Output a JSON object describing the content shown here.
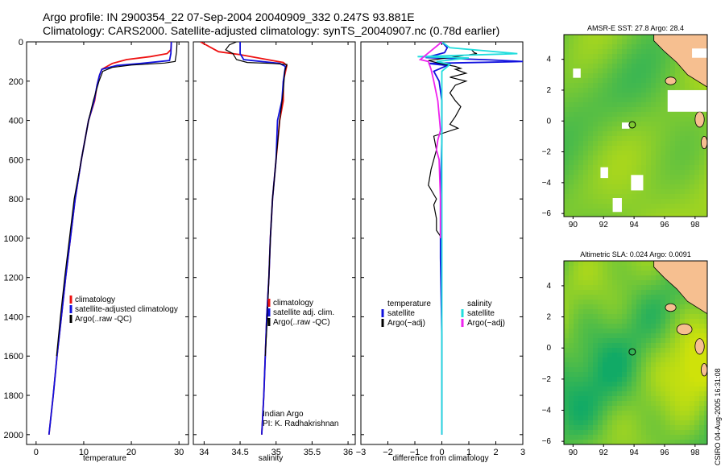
{
  "header": {
    "line1": "Argo profile: IN 2900354_22 07-Sep-2004 20040909_332 0.247S 93.881E",
    "line2": "Climatology: CARS2000. Satellite-adjusted climatology: synTS_20040907.nc (0.78d earlier)"
  },
  "credits": {
    "line1": "Indian Argo",
    "line2": "PI: K. Radhakrishnan",
    "stamp": "CSIRO 04-Aug-2005 16:31:08"
  },
  "colors": {
    "climatology": "#ee1111",
    "satellite": "#1111dd",
    "argo": "#000000",
    "salinity": "#ee22ee",
    "salinity_satellite": "#22dddd",
    "land": "#f6bf90",
    "ocean_high": "#cfe20a",
    "ocean_low": "#11aa66"
  },
  "chart_data": [
    {
      "type": "line",
      "title": "",
      "xlabel": "temperature",
      "ylabel": "",
      "xlim": [
        -2,
        32
      ],
      "ylim": [
        2050,
        0
      ],
      "xticks": [
        "0",
        "10",
        "20",
        "30"
      ],
      "yticks": [
        "0",
        "200",
        "400",
        "600",
        "800",
        "1000",
        "1200",
        "1400",
        "1600",
        "1800",
        "2000"
      ],
      "legend": [
        "climatology",
        "satellite-adjusted climatology",
        "Argo(..raw -QC)"
      ],
      "series": [
        {
          "name": "climatology",
          "color": "red",
          "points": [
            [
              28.4,
              0
            ],
            [
              28.3,
              40
            ],
            [
              27.5,
              60
            ],
            [
              24,
              75
            ],
            [
              19,
              90
            ],
            [
              16,
              110
            ],
            [
              13.8,
              140
            ],
            [
              13.3,
              170
            ],
            [
              12.8,
              220
            ],
            [
              12.3,
              300
            ],
            [
              11,
              400
            ],
            [
              9.5,
              600
            ],
            [
              8.2,
              800
            ],
            [
              7.2,
              1000
            ],
            [
              6.2,
              1200
            ],
            [
              5.3,
              1400
            ],
            [
              4.4,
              1600
            ],
            [
              3.6,
              1800
            ],
            [
              2.7,
              2000
            ]
          ]
        },
        {
          "name": "satellite-adjusted climatology",
          "color": "blue",
          "points": [
            [
              28.4,
              0
            ],
            [
              28.3,
              60
            ],
            [
              28,
              95
            ],
            [
              22,
              110
            ],
            [
              17,
              120
            ],
            [
              13.8,
              140
            ],
            [
              13.3,
              170
            ],
            [
              12.8,
              220
            ],
            [
              12.2,
              300
            ],
            [
              11,
              400
            ],
            [
              9.5,
              600
            ],
            [
              8.2,
              800
            ],
            [
              7.2,
              1000
            ],
            [
              6.2,
              1200
            ],
            [
              5.3,
              1400
            ],
            [
              4.4,
              1600
            ],
            [
              3.6,
              1800
            ],
            [
              2.7,
              2000
            ]
          ]
        },
        {
          "name": "Argo(..raw -QC)",
          "color": "black",
          "points": [
            [
              29.6,
              0
            ],
            [
              29.5,
              50
            ],
            [
              29.2,
              100
            ],
            [
              27,
              108
            ],
            [
              20,
              118
            ],
            [
              16,
              130
            ],
            [
              14,
              150
            ],
            [
              13.2,
              200
            ],
            [
              12,
              300
            ],
            [
              11,
              400
            ],
            [
              9.5,
              600
            ],
            [
              8,
              800
            ],
            [
              7,
              1000
            ],
            [
              6,
              1200
            ],
            [
              5.1,
              1400
            ],
            [
              4.3,
              1600
            ]
          ]
        }
      ]
    },
    {
      "type": "line",
      "title": "",
      "xlabel": "salinity",
      "ylabel": "",
      "xlim": [
        33.85,
        36.1
      ],
      "ylim": [
        2050,
        0
      ],
      "xticks": [
        "34",
        "34.5",
        "35",
        "35.5",
        "36"
      ],
      "legend": [
        "climatology",
        "satellite adj. clim.",
        "Argo(..raw -QC)"
      ],
      "series": [
        {
          "name": "climatology",
          "color": "red",
          "points": [
            [
              33.95,
              0
            ],
            [
              34.1,
              30
            ],
            [
              34.2,
              50
            ],
            [
              34.5,
              65
            ],
            [
              34.8,
              85
            ],
            [
              35.1,
              105
            ],
            [
              35.15,
              120
            ],
            [
              35.1,
              200
            ],
            [
              35.1,
              300
            ],
            [
              35.05,
              400
            ],
            [
              35,
              600
            ],
            [
              34.95,
              800
            ],
            [
              34.92,
              1000
            ],
            [
              34.9,
              1200
            ],
            [
              34.87,
              1400
            ],
            [
              34.85,
              1600
            ],
            [
              34.83,
              1800
            ],
            [
              34.8,
              2000
            ]
          ]
        },
        {
          "name": "satellite adj. clim.",
          "color": "blue",
          "points": [
            [
              34.5,
              0
            ],
            [
              34.5,
              60
            ],
            [
              34.55,
              90
            ],
            [
              35.05,
              110
            ],
            [
              35.13,
              125
            ],
            [
              35.1,
              200
            ],
            [
              35.08,
              300
            ],
            [
              35.02,
              400
            ],
            [
              35,
              600
            ],
            [
              34.95,
              800
            ],
            [
              34.92,
              1000
            ],
            [
              34.9,
              1200
            ],
            [
              34.87,
              1400
            ],
            [
              34.85,
              1600
            ],
            [
              34.83,
              1800
            ],
            [
              34.8,
              2000
            ]
          ]
        },
        {
          "name": "Argo(..raw -QC)",
          "color": "black",
          "points": [
            [
              34.45,
              0
            ],
            [
              34.35,
              15
            ],
            [
              34.3,
              40
            ],
            [
              34.4,
              60
            ],
            [
              34.45,
              90
            ],
            [
              34.6,
              105
            ],
            [
              34.95,
              110
            ],
            [
              35.15,
              115
            ],
            [
              35.12,
              150
            ],
            [
              35.1,
              250
            ],
            [
              35.05,
              400
            ],
            [
              35,
              600
            ],
            [
              34.95,
              800
            ],
            [
              34.92,
              1000
            ],
            [
              34.9,
              1200
            ],
            [
              34.88,
              1400
            ],
            [
              34.85,
              1600
            ]
          ]
        }
      ]
    },
    {
      "type": "line",
      "title": "",
      "xlabel": "difference from climatology",
      "ylabel": "",
      "xlim": [
        -3,
        3
      ],
      "ylim": [
        2050,
        0
      ],
      "xticks": [
        "−3",
        "−2",
        "−1",
        "0",
        "1",
        "2",
        "3"
      ],
      "legend_temperature": [
        "temperature",
        "satellite",
        "Argo(−adj)"
      ],
      "legend_salinity": [
        "salinity",
        "satellite",
        "Argo(−adj)"
      ],
      "series": [
        {
          "name": "temperature satellite",
          "color": "blue",
          "points": [
            [
              0,
              0
            ],
            [
              0.2,
              30
            ],
            [
              0.1,
              55
            ],
            [
              -0.6,
              80
            ],
            [
              1.8,
              92
            ],
            [
              3,
              100
            ],
            [
              -0.5,
              110
            ],
            [
              0.2,
              120
            ],
            [
              -0.3,
              150
            ],
            [
              -0.1,
              200
            ],
            [
              0,
              300
            ],
            [
              0,
              500
            ],
            [
              -0.05,
              800
            ],
            [
              -0.05,
              1100
            ],
            [
              0,
              1500
            ],
            [
              0,
              2000
            ]
          ]
        },
        {
          "name": "temperature Argo(−adj)",
          "color": "black",
          "points": [
            [
              1.1,
              40
            ],
            [
              1.2,
              55
            ],
            [
              1.3,
              60
            ],
            [
              -0.5,
              95
            ],
            [
              0,
              112
            ],
            [
              0.5,
              125
            ],
            [
              0.7,
              135
            ],
            [
              0.5,
              140
            ],
            [
              0.9,
              160
            ],
            [
              0.3,
              180
            ],
            [
              0.9,
              200
            ],
            [
              0.5,
              220
            ],
            [
              0.3,
              260
            ],
            [
              0.5,
              300
            ],
            [
              0.7,
              330
            ],
            [
              0.5,
              380
            ],
            [
              0.3,
              420
            ],
            [
              0.6,
              440
            ],
            [
              -0.3,
              480
            ],
            [
              -0.2,
              550
            ],
            [
              -0.4,
              650
            ],
            [
              -0.5,
              730
            ],
            [
              -0.2,
              800
            ],
            [
              -0.3,
              830
            ],
            [
              -0.2,
              900
            ],
            [
              -0.2,
              960
            ],
            [
              0,
              1000
            ]
          ]
        },
        {
          "name": "salinity satellite",
          "color": "cyan",
          "points": [
            [
              0,
              0
            ],
            [
              0.3,
              30
            ],
            [
              2.8,
              60
            ],
            [
              -0.9,
              75
            ],
            [
              1,
              82
            ],
            [
              -0.2,
              100
            ],
            [
              0.3,
              115
            ],
            [
              0,
              150
            ],
            [
              0,
              300
            ],
            [
              0,
              600
            ],
            [
              0,
              900
            ],
            [
              0,
              1200
            ],
            [
              0,
              1500
            ],
            [
              0,
              2000
            ]
          ]
        },
        {
          "name": "salinity Argo(−adj)",
          "color": "magenta",
          "points": [
            [
              0,
              0
            ],
            [
              -0.8,
              90
            ],
            [
              -0.5,
              100
            ],
            [
              -0.4,
              140
            ],
            [
              -0.3,
              200
            ],
            [
              -0.15,
              300
            ],
            [
              -0.05,
              450
            ],
            [
              -0.15,
              500
            ],
            [
              -0.2,
              550
            ],
            [
              -0.1,
              600
            ],
            [
              -0.05,
              800
            ],
            [
              -0.05,
              1000
            ]
          ]
        }
      ]
    },
    {
      "type": "heatmap",
      "title": "AMSR-E SST: 27.8 Argo: 28.4",
      "xlim": [
        89.4,
        98.8
      ],
      "ylim": [
        -6.2,
        5.6
      ],
      "xticks": [
        "90",
        "92",
        "94",
        "96",
        "98"
      ],
      "yticks": [
        "4",
        "2",
        "0",
        "−2",
        "−4",
        "−6"
      ],
      "marker": [
        93.881,
        -0.247
      ]
    },
    {
      "type": "heatmap",
      "title": "Altimetric SLA: 0.024 Argo: 0.0091",
      "xlim": [
        89.4,
        98.8
      ],
      "ylim": [
        -6.2,
        5.6
      ],
      "xticks": [
        "90",
        "92",
        "94",
        "96",
        "98"
      ],
      "yticks": [
        "4",
        "2",
        "0",
        "−2",
        "−4",
        "−6"
      ],
      "marker": [
        93.881,
        -0.247
      ]
    }
  ]
}
